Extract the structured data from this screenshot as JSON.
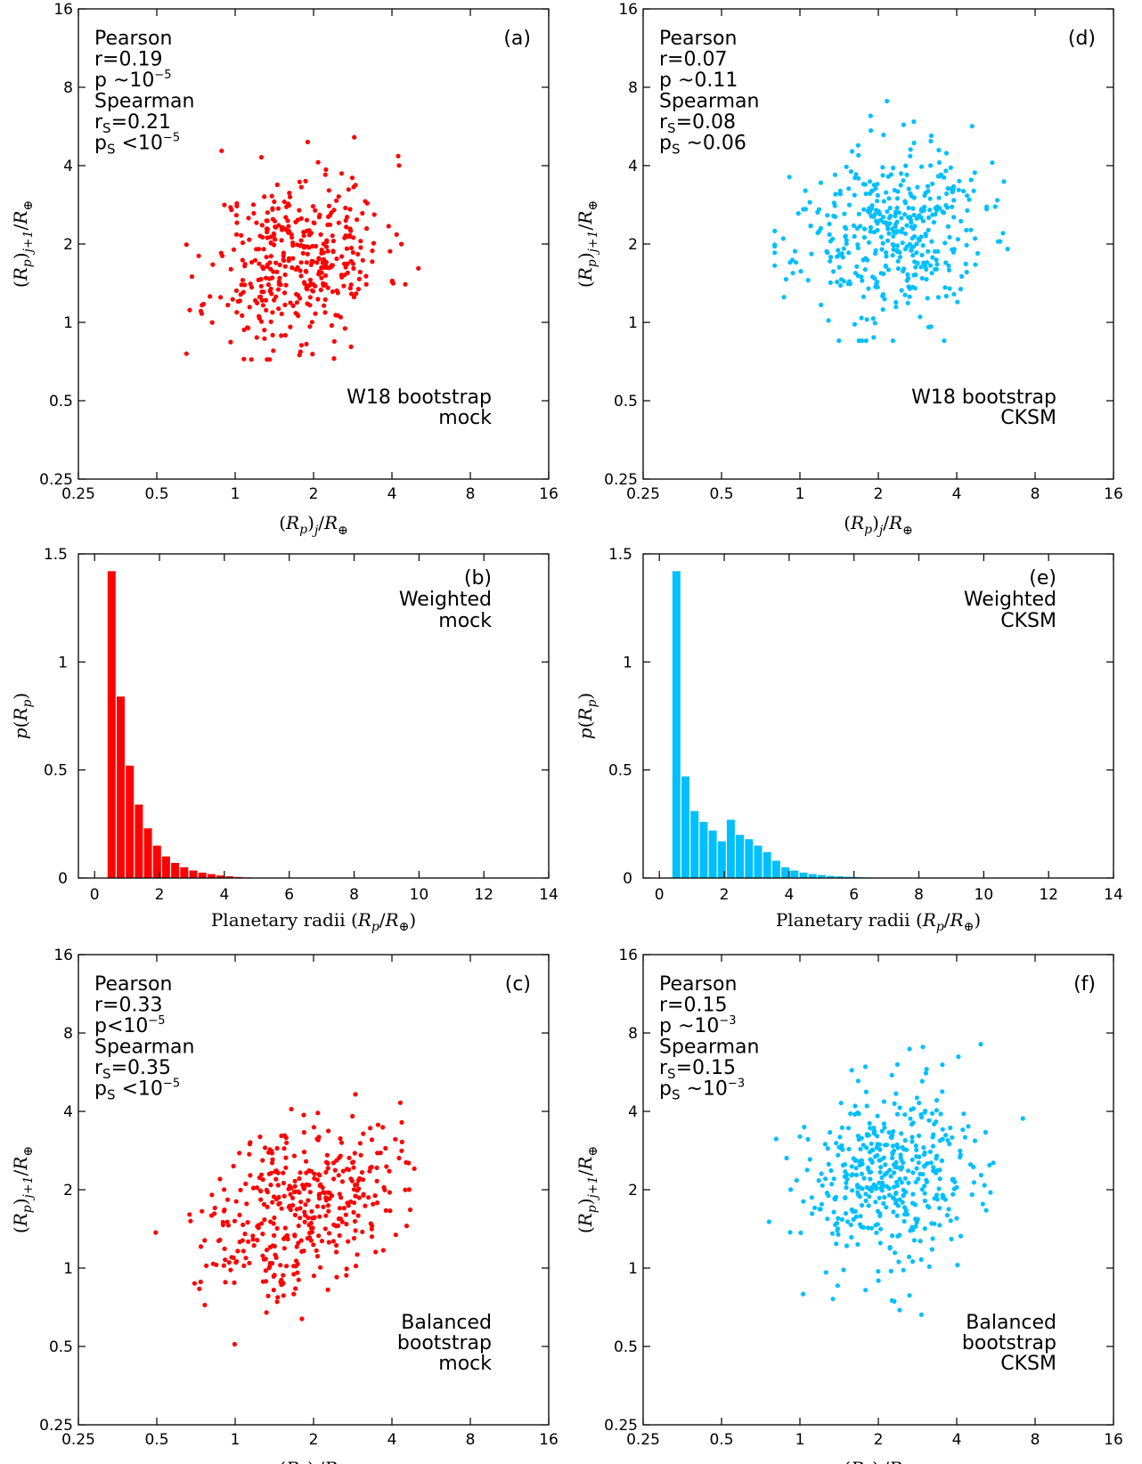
{
  "colors": {
    "mock": "#ff0000",
    "cksm": "#00bfff"
  },
  "chart_data": [
    {
      "id": "a",
      "type": "scatter",
      "panel_label": "(a)",
      "color": "#ff0000",
      "xscale": "log2",
      "yscale": "log2",
      "xlim": [
        0.25,
        16
      ],
      "ylim": [
        0.25,
        16
      ],
      "xticks": [
        "0.25",
        "0.5",
        "1",
        "2",
        "4",
        "8",
        "16"
      ],
      "yticks": [
        "0.25",
        "0.5",
        "1",
        "2",
        "4",
        "8",
        "16"
      ],
      "xlabel": "(R_p)_j/R_⊕",
      "ylabel": "(R_p)_{j+1}/R_⊕",
      "stats": [
        {
          "t": "Pearson"
        },
        {
          "t": "r=0.19"
        },
        {
          "t": "p ~10",
          "sup": "−5"
        },
        {
          "t": "Spearman"
        },
        {
          "t": "r",
          "sub": "S",
          "t2": "=0.21"
        },
        {
          "t": "p",
          "sub": "S",
          "t2": " <10",
          "sup": "−5"
        }
      ],
      "caption": [
        "W18 bootstrap",
        "mock"
      ],
      "sample": {
        "n": 400,
        "x_median": 1.75,
        "x_sigma_log2": 0.55,
        "y_median": 1.75,
        "y_sigma_log2": 0.55,
        "corr": 0.19,
        "x_range": [
          0.65,
          9
        ],
        "y_range": [
          0.72,
          11
        ],
        "seed": 11
      }
    },
    {
      "id": "d",
      "type": "scatter",
      "panel_label": "(d)",
      "color": "#00bfff",
      "xscale": "log2",
      "yscale": "log2",
      "xlim": [
        0.25,
        16
      ],
      "ylim": [
        0.25,
        16
      ],
      "xticks": [
        "0.25",
        "0.5",
        "1",
        "2",
        "4",
        "8",
        "16"
      ],
      "yticks": [
        "0.25",
        "0.5",
        "1",
        "2",
        "4",
        "8",
        "16"
      ],
      "xlabel": "(R_p)_j/R_⊕",
      "ylabel": "(R_p)_{j+1}/R_⊕",
      "stats": [
        {
          "t": "Pearson"
        },
        {
          "t": "r=0.07"
        },
        {
          "t": "p ~0.11"
        },
        {
          "t": "Spearman"
        },
        {
          "t": "r",
          "sub": "S",
          "t2": "=0.08"
        },
        {
          "t": "p",
          "sub": "S",
          "t2": " ~0.06"
        }
      ],
      "caption": [
        "W18 bootstrap",
        "CKSM"
      ],
      "sample": {
        "n": 420,
        "x_median": 2.2,
        "x_sigma_log2": 0.6,
        "y_median": 2.2,
        "y_sigma_log2": 0.55,
        "corr": 0.07,
        "x_range": [
          0.8,
          13.5
        ],
        "y_range": [
          0.85,
          13.5
        ],
        "seed": 23
      }
    },
    {
      "id": "c",
      "type": "scatter",
      "panel_label": "(c)",
      "color": "#ff0000",
      "xscale": "log2",
      "yscale": "log2",
      "xlim": [
        0.25,
        16
      ],
      "ylim": [
        0.25,
        16
      ],
      "xticks": [
        "0.25",
        "0.5",
        "1",
        "2",
        "4",
        "8",
        "16"
      ],
      "yticks": [
        "0.25",
        "0.5",
        "1",
        "2",
        "4",
        "8",
        "16"
      ],
      "xlabel": "(R_p)_j/R_⊕",
      "ylabel": "(R_p)_{j+1}/R_⊕",
      "stats": [
        {
          "t": "Pearson"
        },
        {
          "t": "r=0.33"
        },
        {
          "t": "p<10",
          "sup": "−5"
        },
        {
          "t": "Spearman"
        },
        {
          "t": "r",
          "sub": "S",
          "t2": "=0.35"
        },
        {
          "t": "p",
          "sub": "S",
          "t2": " <10",
          "sup": "−5"
        }
      ],
      "caption": [
        "Balanced",
        "bootstrap",
        "mock"
      ],
      "sample": {
        "n": 400,
        "x_median": 1.8,
        "x_sigma_log2": 0.6,
        "y_median": 1.75,
        "y_sigma_log2": 0.55,
        "corr": 0.33,
        "x_range": [
          0.4,
          10.5
        ],
        "y_range": [
          0.42,
          10
        ],
        "seed": 37
      }
    },
    {
      "id": "f",
      "type": "scatter",
      "panel_label": "(f)",
      "color": "#00bfff",
      "xscale": "log2",
      "yscale": "log2",
      "xlim": [
        0.25,
        16
      ],
      "ylim": [
        0.25,
        16
      ],
      "xticks": [
        "0.25",
        "0.5",
        "1",
        "2",
        "4",
        "8",
        "16"
      ],
      "yticks": [
        "0.25",
        "0.5",
        "1",
        "2",
        "4",
        "8",
        "16"
      ],
      "xlabel": "(R_p)_j/R_⊕",
      "ylabel": "(R_p)_{j+1}/R_⊕",
      "stats": [
        {
          "t": "Pearson"
        },
        {
          "t": "r=0.15"
        },
        {
          "t": "p ~10",
          "sup": "−3"
        },
        {
          "t": "Spearman"
        },
        {
          "t": "r",
          "sub": "S",
          "t2": "=0.15"
        },
        {
          "t": "p",
          "sub": "S",
          "t2": " ~10",
          "sup": "−3"
        }
      ],
      "caption": [
        "Balanced",
        "bootstrap",
        "CKSM"
      ],
      "sample": {
        "n": 440,
        "x_median": 2.3,
        "x_sigma_log2": 0.6,
        "y_median": 2.2,
        "y_sigma_log2": 0.6,
        "corr": 0.15,
        "x_range": [
          0.58,
          14
        ],
        "y_range": [
          0.58,
          13.5
        ],
        "seed": 53
      }
    },
    {
      "id": "b",
      "type": "bar",
      "panel_label": "(b)",
      "color": "#ff0000",
      "xlim": [
        -0.5,
        14
      ],
      "ylim": [
        0,
        1.5
      ],
      "xticks": [
        "0",
        "2",
        "4",
        "6",
        "8",
        "10",
        "12",
        "14"
      ],
      "yticks": [
        "0",
        "0.5",
        "1",
        "1.5"
      ],
      "xlabel": "Planetary radii (R_p/R_⊕)",
      "ylabel": "p(R_p)",
      "caption": [
        "Weighted",
        "mock"
      ],
      "bin_width": 0.28,
      "bin_start": 0.4,
      "values": [
        1.42,
        0.84,
        0.52,
        0.34,
        0.23,
        0.15,
        0.1,
        0.07,
        0.05,
        0.035,
        0.025,
        0.018,
        0.012,
        0.008,
        0.005,
        0.003,
        0.002,
        0.001
      ]
    },
    {
      "id": "e",
      "type": "bar",
      "panel_label": "(e)",
      "color": "#00bfff",
      "xlim": [
        -0.5,
        14
      ],
      "ylim": [
        0,
        1.5
      ],
      "xticks": [
        "0",
        "2",
        "4",
        "6",
        "8",
        "10",
        "12",
        "14"
      ],
      "yticks": [
        "0",
        "0.5",
        "1",
        "1.5"
      ],
      "xlabel": "Planetary radii (R_p/R_⊕)",
      "ylabel": "p(R_p)",
      "caption": [
        "Weighted",
        "CKSM"
      ],
      "bin_width": 0.28,
      "bin_start": 0.4,
      "values": [
        1.42,
        0.47,
        0.31,
        0.26,
        0.22,
        0.17,
        0.27,
        0.2,
        0.18,
        0.15,
        0.12,
        0.08,
        0.05,
        0.035,
        0.025,
        0.018,
        0.014,
        0.01,
        0.008,
        0.006,
        0.004,
        0.003,
        0.002,
        0.001
      ]
    }
  ]
}
